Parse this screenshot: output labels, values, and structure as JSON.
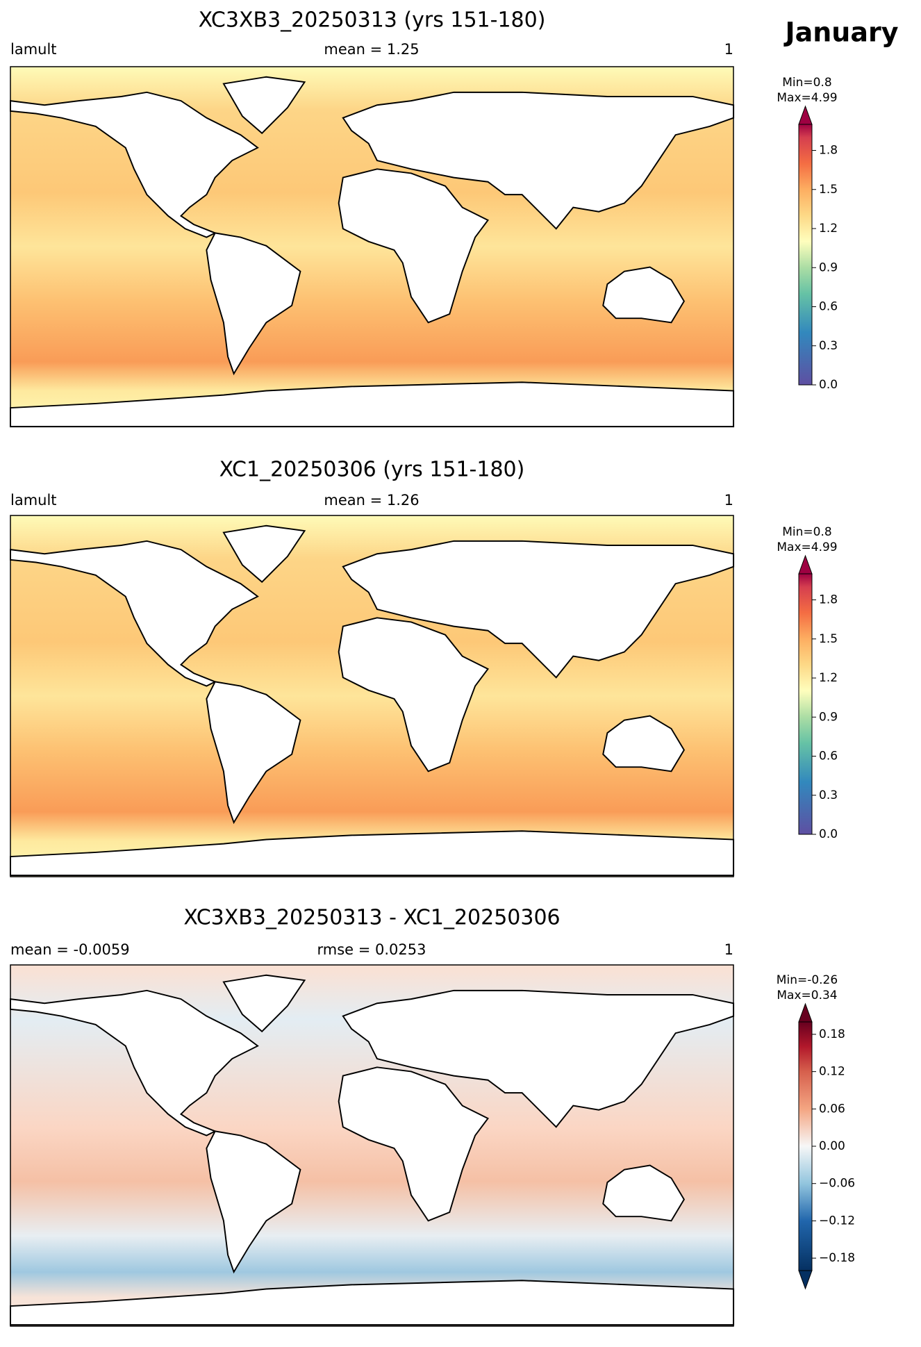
{
  "header": {
    "title": "January"
  },
  "panels": [
    {
      "title": "XC3XB3_20250313 (yrs 151-180)",
      "left_label": "lamult",
      "center_label": "mean = 1.25",
      "right_label": "1",
      "min_label": "Min=0.8",
      "max_label": "Max=4.99",
      "colorbar": {
        "clim": [
          0,
          2
        ],
        "ticks": [
          {
            "value": 0,
            "label": "0.0"
          },
          0.3,
          0.6,
          0.9,
          1.2,
          1.5,
          1.8
        ]
      }
    },
    {
      "title": "XC1_20250306 (yrs 151-180)",
      "left_label": "lamult",
      "center_label": "mean = 1.26",
      "right_label": "1",
      "min_label": "Min=0.8",
      "max_label": "Max=4.99",
      "colorbar": {
        "clim": [
          0,
          2
        ],
        "ticks": [
          {
            "value": 0,
            "label": "0.0"
          },
          0.3,
          0.6,
          0.9,
          1.2,
          1.5,
          1.8
        ]
      }
    },
    {
      "title": "XC3XB3_20250313 - XC1_20250306",
      "left_label": "mean = -0.0059",
      "center_label": "rmse = 0.0253",
      "right_label": "1",
      "min_label": "Min=-0.26",
      "max_label": "Max=0.34",
      "colorbar": {
        "clim": [
          -0.2,
          0.2
        ],
        "ticks": [
          {
            "value": -0.18,
            "label": "−0.18"
          },
          {
            "value": -0.12,
            "label": "−0.12"
          },
          {
            "value": -0.06,
            "label": "−0.06"
          },
          {
            "value": 0,
            "label": "0.00"
          },
          0.06,
          0.12,
          0.18
        ]
      }
    }
  ]
}
